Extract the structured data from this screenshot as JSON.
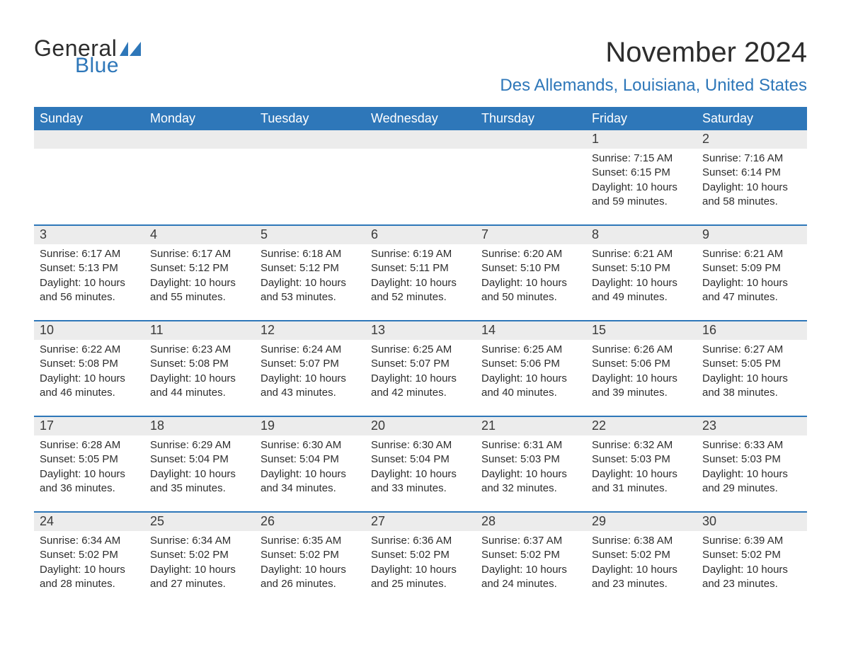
{
  "logo": {
    "text_top": "General",
    "text_bottom": "Blue",
    "accent_color": "#2e77b9"
  },
  "title": "November 2024",
  "subtitle": "Des Allemands, Louisiana, United States",
  "colors": {
    "header_bg": "#2e77b9",
    "header_text": "#ffffff",
    "daynum_bg": "#ececec",
    "week_border": "#2e77b9",
    "text": "#2d2d2d",
    "page_bg": "#ffffff"
  },
  "weekdays": [
    "Sunday",
    "Monday",
    "Tuesday",
    "Wednesday",
    "Thursday",
    "Friday",
    "Saturday"
  ],
  "weeks": [
    [
      {
        "num": "",
        "sunrise": "",
        "sunset": "",
        "daylight1": "",
        "daylight2": "",
        "empty": true
      },
      {
        "num": "",
        "sunrise": "",
        "sunset": "",
        "daylight1": "",
        "daylight2": "",
        "empty": true
      },
      {
        "num": "",
        "sunrise": "",
        "sunset": "",
        "daylight1": "",
        "daylight2": "",
        "empty": true
      },
      {
        "num": "",
        "sunrise": "",
        "sunset": "",
        "daylight1": "",
        "daylight2": "",
        "empty": true
      },
      {
        "num": "",
        "sunrise": "",
        "sunset": "",
        "daylight1": "",
        "daylight2": "",
        "empty": true
      },
      {
        "num": "1",
        "sunrise": "Sunrise: 7:15 AM",
        "sunset": "Sunset: 6:15 PM",
        "daylight1": "Daylight: 10 hours",
        "daylight2": "and 59 minutes."
      },
      {
        "num": "2",
        "sunrise": "Sunrise: 7:16 AM",
        "sunset": "Sunset: 6:14 PM",
        "daylight1": "Daylight: 10 hours",
        "daylight2": "and 58 minutes."
      }
    ],
    [
      {
        "num": "3",
        "sunrise": "Sunrise: 6:17 AM",
        "sunset": "Sunset: 5:13 PM",
        "daylight1": "Daylight: 10 hours",
        "daylight2": "and 56 minutes."
      },
      {
        "num": "4",
        "sunrise": "Sunrise: 6:17 AM",
        "sunset": "Sunset: 5:12 PM",
        "daylight1": "Daylight: 10 hours",
        "daylight2": "and 55 minutes."
      },
      {
        "num": "5",
        "sunrise": "Sunrise: 6:18 AM",
        "sunset": "Sunset: 5:12 PM",
        "daylight1": "Daylight: 10 hours",
        "daylight2": "and 53 minutes."
      },
      {
        "num": "6",
        "sunrise": "Sunrise: 6:19 AM",
        "sunset": "Sunset: 5:11 PM",
        "daylight1": "Daylight: 10 hours",
        "daylight2": "and 52 minutes."
      },
      {
        "num": "7",
        "sunrise": "Sunrise: 6:20 AM",
        "sunset": "Sunset: 5:10 PM",
        "daylight1": "Daylight: 10 hours",
        "daylight2": "and 50 minutes."
      },
      {
        "num": "8",
        "sunrise": "Sunrise: 6:21 AM",
        "sunset": "Sunset: 5:10 PM",
        "daylight1": "Daylight: 10 hours",
        "daylight2": "and 49 minutes."
      },
      {
        "num": "9",
        "sunrise": "Sunrise: 6:21 AM",
        "sunset": "Sunset: 5:09 PM",
        "daylight1": "Daylight: 10 hours",
        "daylight2": "and 47 minutes."
      }
    ],
    [
      {
        "num": "10",
        "sunrise": "Sunrise: 6:22 AM",
        "sunset": "Sunset: 5:08 PM",
        "daylight1": "Daylight: 10 hours",
        "daylight2": "and 46 minutes."
      },
      {
        "num": "11",
        "sunrise": "Sunrise: 6:23 AM",
        "sunset": "Sunset: 5:08 PM",
        "daylight1": "Daylight: 10 hours",
        "daylight2": "and 44 minutes."
      },
      {
        "num": "12",
        "sunrise": "Sunrise: 6:24 AM",
        "sunset": "Sunset: 5:07 PM",
        "daylight1": "Daylight: 10 hours",
        "daylight2": "and 43 minutes."
      },
      {
        "num": "13",
        "sunrise": "Sunrise: 6:25 AM",
        "sunset": "Sunset: 5:07 PM",
        "daylight1": "Daylight: 10 hours",
        "daylight2": "and 42 minutes."
      },
      {
        "num": "14",
        "sunrise": "Sunrise: 6:25 AM",
        "sunset": "Sunset: 5:06 PM",
        "daylight1": "Daylight: 10 hours",
        "daylight2": "and 40 minutes."
      },
      {
        "num": "15",
        "sunrise": "Sunrise: 6:26 AM",
        "sunset": "Sunset: 5:06 PM",
        "daylight1": "Daylight: 10 hours",
        "daylight2": "and 39 minutes."
      },
      {
        "num": "16",
        "sunrise": "Sunrise: 6:27 AM",
        "sunset": "Sunset: 5:05 PM",
        "daylight1": "Daylight: 10 hours",
        "daylight2": "and 38 minutes."
      }
    ],
    [
      {
        "num": "17",
        "sunrise": "Sunrise: 6:28 AM",
        "sunset": "Sunset: 5:05 PM",
        "daylight1": "Daylight: 10 hours",
        "daylight2": "and 36 minutes."
      },
      {
        "num": "18",
        "sunrise": "Sunrise: 6:29 AM",
        "sunset": "Sunset: 5:04 PM",
        "daylight1": "Daylight: 10 hours",
        "daylight2": "and 35 minutes."
      },
      {
        "num": "19",
        "sunrise": "Sunrise: 6:30 AM",
        "sunset": "Sunset: 5:04 PM",
        "daylight1": "Daylight: 10 hours",
        "daylight2": "and 34 minutes."
      },
      {
        "num": "20",
        "sunrise": "Sunrise: 6:30 AM",
        "sunset": "Sunset: 5:04 PM",
        "daylight1": "Daylight: 10 hours",
        "daylight2": "and 33 minutes."
      },
      {
        "num": "21",
        "sunrise": "Sunrise: 6:31 AM",
        "sunset": "Sunset: 5:03 PM",
        "daylight1": "Daylight: 10 hours",
        "daylight2": "and 32 minutes."
      },
      {
        "num": "22",
        "sunrise": "Sunrise: 6:32 AM",
        "sunset": "Sunset: 5:03 PM",
        "daylight1": "Daylight: 10 hours",
        "daylight2": "and 31 minutes."
      },
      {
        "num": "23",
        "sunrise": "Sunrise: 6:33 AM",
        "sunset": "Sunset: 5:03 PM",
        "daylight1": "Daylight: 10 hours",
        "daylight2": "and 29 minutes."
      }
    ],
    [
      {
        "num": "24",
        "sunrise": "Sunrise: 6:34 AM",
        "sunset": "Sunset: 5:02 PM",
        "daylight1": "Daylight: 10 hours",
        "daylight2": "and 28 minutes."
      },
      {
        "num": "25",
        "sunrise": "Sunrise: 6:34 AM",
        "sunset": "Sunset: 5:02 PM",
        "daylight1": "Daylight: 10 hours",
        "daylight2": "and 27 minutes."
      },
      {
        "num": "26",
        "sunrise": "Sunrise: 6:35 AM",
        "sunset": "Sunset: 5:02 PM",
        "daylight1": "Daylight: 10 hours",
        "daylight2": "and 26 minutes."
      },
      {
        "num": "27",
        "sunrise": "Sunrise: 6:36 AM",
        "sunset": "Sunset: 5:02 PM",
        "daylight1": "Daylight: 10 hours",
        "daylight2": "and 25 minutes."
      },
      {
        "num": "28",
        "sunrise": "Sunrise: 6:37 AM",
        "sunset": "Sunset: 5:02 PM",
        "daylight1": "Daylight: 10 hours",
        "daylight2": "and 24 minutes."
      },
      {
        "num": "29",
        "sunrise": "Sunrise: 6:38 AM",
        "sunset": "Sunset: 5:02 PM",
        "daylight1": "Daylight: 10 hours",
        "daylight2": "and 23 minutes."
      },
      {
        "num": "30",
        "sunrise": "Sunrise: 6:39 AM",
        "sunset": "Sunset: 5:02 PM",
        "daylight1": "Daylight: 10 hours",
        "daylight2": "and 23 minutes."
      }
    ]
  ]
}
